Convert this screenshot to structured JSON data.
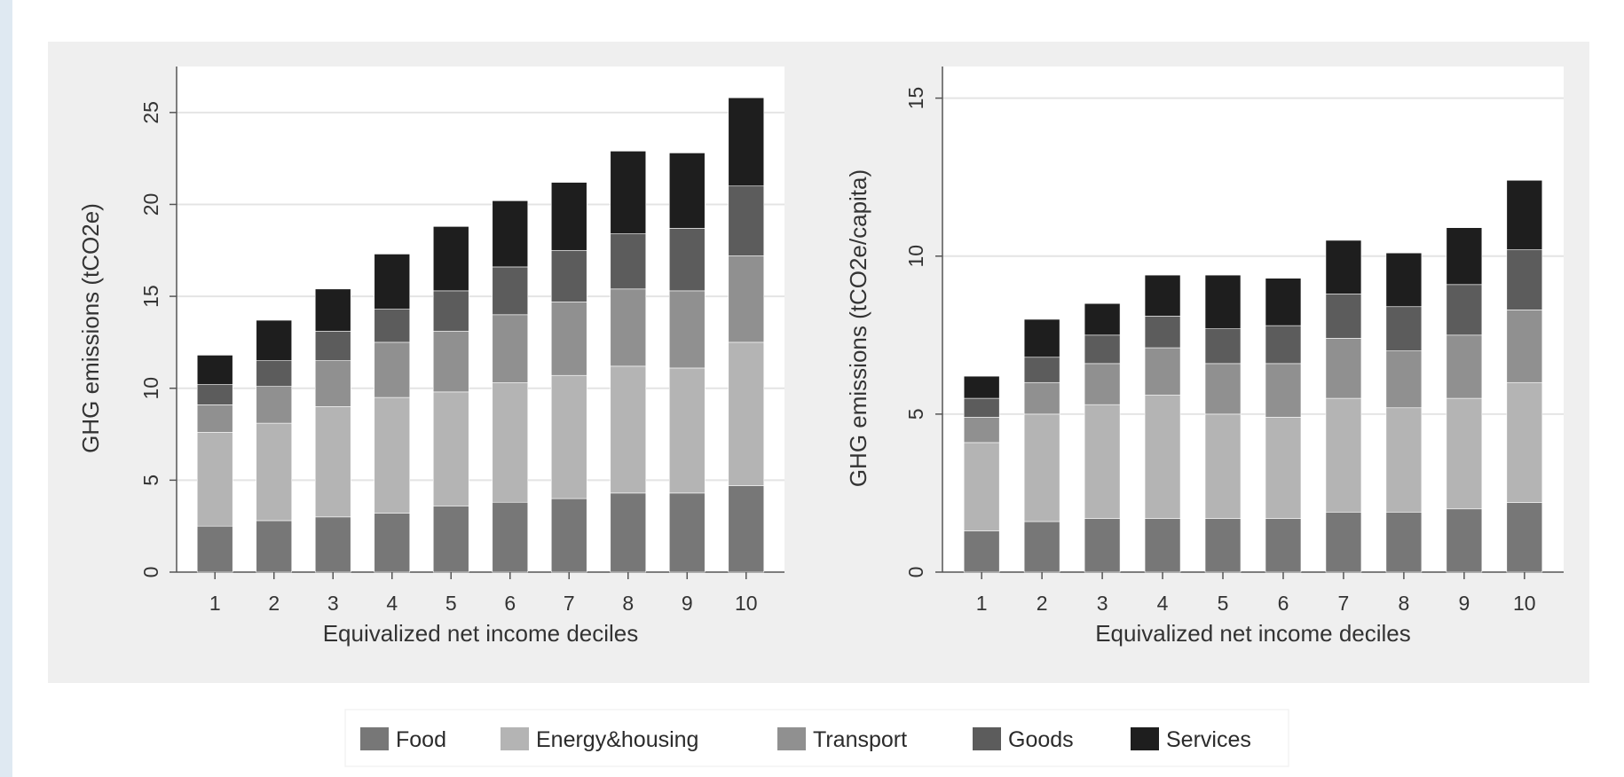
{
  "chart_data": [
    {
      "type": "bar",
      "stacked": true,
      "title": "",
      "xlabel": "Equivalized net income deciles",
      "ylabel": "GHG emissions (tCO2e)",
      "categories": [
        "1",
        "2",
        "3",
        "4",
        "5",
        "6",
        "7",
        "8",
        "9",
        "10"
      ],
      "ylim": [
        0,
        27.5
      ],
      "yticks": [
        "0",
        "5",
        "10",
        "15",
        "20",
        "25"
      ],
      "grid": true,
      "series": [
        {
          "name": "Food",
          "values": [
            2.5,
            2.8,
            3.0,
            3.2,
            3.6,
            3.8,
            4.0,
            4.3,
            4.3,
            4.7
          ]
        },
        {
          "name": "Energy&housing",
          "values": [
            5.1,
            5.3,
            6.0,
            6.3,
            6.2,
            6.5,
            6.7,
            6.9,
            6.8,
            7.8
          ]
        },
        {
          "name": "Transport",
          "values": [
            1.5,
            2.0,
            2.5,
            3.0,
            3.3,
            3.7,
            4.0,
            4.2,
            4.2,
            4.7
          ]
        },
        {
          "name": "Goods",
          "values": [
            1.1,
            1.4,
            1.6,
            1.8,
            2.2,
            2.6,
            2.8,
            3.0,
            3.4,
            3.8
          ]
        },
        {
          "name": "Services",
          "values": [
            1.6,
            2.2,
            2.3,
            3.0,
            3.5,
            3.6,
            3.7,
            4.5,
            4.1,
            4.8
          ]
        }
      ]
    },
    {
      "type": "bar",
      "stacked": true,
      "title": "",
      "xlabel": "Equivalized net income deciles",
      "ylabel": "GHG emissions (tCO2e/capita)",
      "categories": [
        "1",
        "2",
        "3",
        "4",
        "5",
        "6",
        "7",
        "8",
        "9",
        "10"
      ],
      "ylim": [
        0,
        16
      ],
      "yticks": [
        "0",
        "5",
        "10",
        "15"
      ],
      "grid": true,
      "series": [
        {
          "name": "Food",
          "values": [
            1.3,
            1.6,
            1.7,
            1.7,
            1.7,
            1.7,
            1.9,
            1.9,
            2.0,
            2.2
          ]
        },
        {
          "name": "Energy&housing",
          "values": [
            2.8,
            3.4,
            3.6,
            3.9,
            3.3,
            3.2,
            3.6,
            3.3,
            3.5,
            3.8
          ]
        },
        {
          "name": "Transport",
          "values": [
            0.8,
            1.0,
            1.3,
            1.5,
            1.6,
            1.7,
            1.9,
            1.8,
            2.0,
            2.3
          ]
        },
        {
          "name": "Goods",
          "values": [
            0.6,
            0.8,
            0.9,
            1.0,
            1.1,
            1.2,
            1.4,
            1.4,
            1.6,
            1.9
          ]
        },
        {
          "name": "Services",
          "values": [
            0.7,
            1.2,
            1.0,
            1.3,
            1.7,
            1.5,
            1.7,
            1.7,
            1.8,
            2.2
          ]
        }
      ]
    }
  ],
  "legend": {
    "items": [
      {
        "label": "Food",
        "color": "#777777"
      },
      {
        "label": "Energy&housing",
        "color": "#b4b4b4"
      },
      {
        "label": "Transport",
        "color": "#909090"
      },
      {
        "label": "Goods",
        "color": "#5c5c5c"
      },
      {
        "label": "Services",
        "color": "#1e1e1e"
      }
    ]
  },
  "colors": {
    "panel_background": "#efefef",
    "plot_background": "#ffffff",
    "gridline": "#e4e4e4",
    "outer_background": "#dfe9f2"
  }
}
